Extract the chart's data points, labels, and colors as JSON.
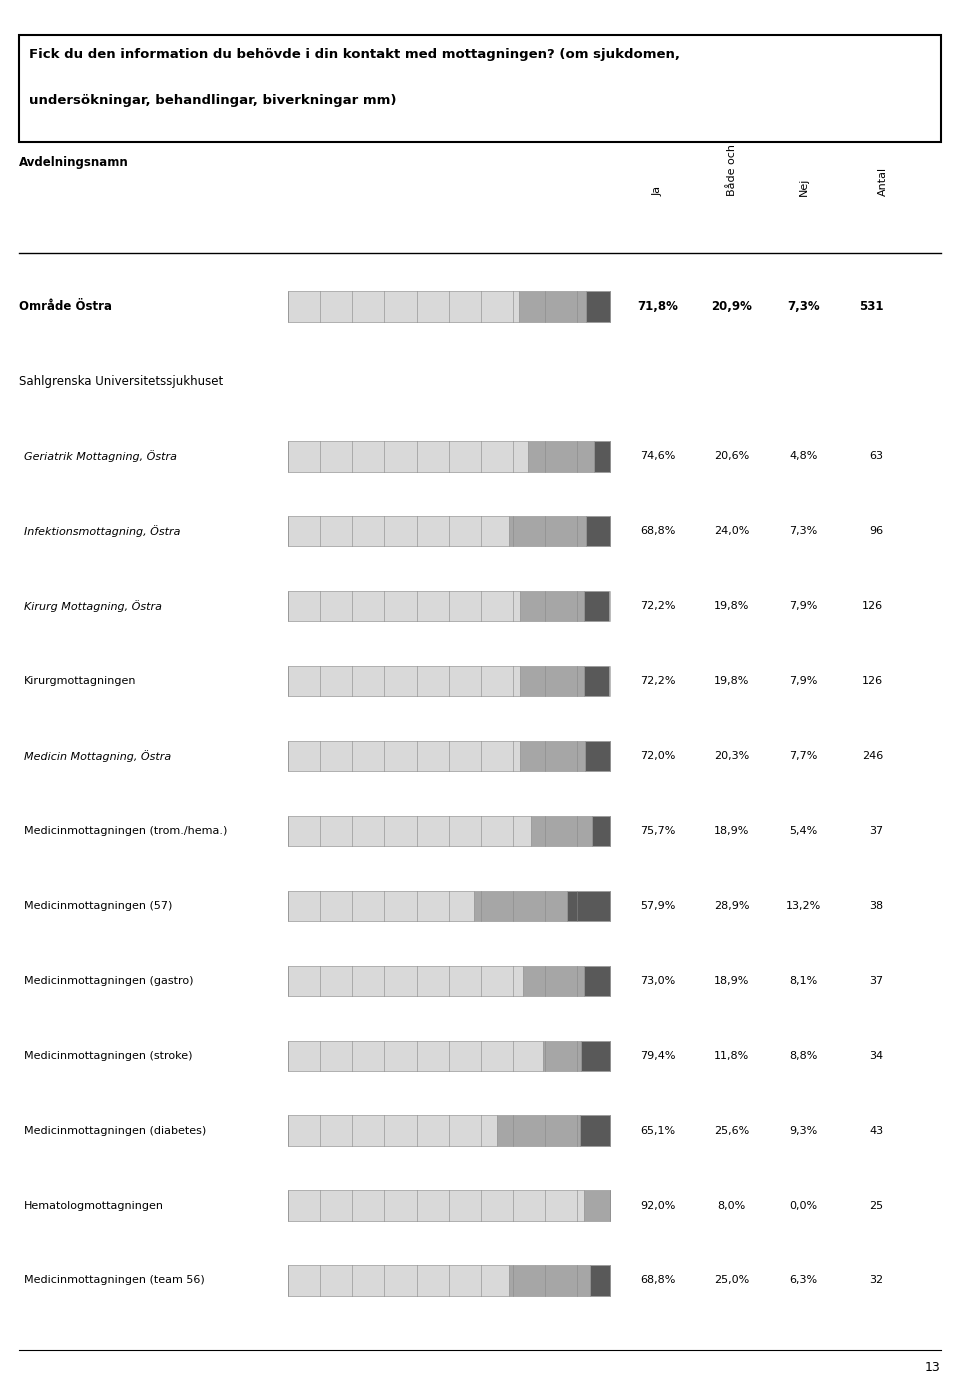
{
  "title_line1": "Fick du den information du behövde i din kontakt med mottagningen? (om sjukdomen,",
  "title_line2": "undersökningar, behandlingar, biverkningar mm)",
  "avdelningsnamn": "Avdelningsnamn",
  "col_headers": [
    "Ja",
    "Både och",
    "Nej",
    "Antal"
  ],
  "rows": [
    {
      "label": "Område Östra",
      "ja": 71.8,
      "bade": 20.9,
      "nej": 7.3,
      "antal": 531,
      "bold": true,
      "italic": false,
      "indent": 0,
      "is_header": false,
      "show_bar": true
    },
    {
      "label": "Sahlgrenska Universitetssjukhuset",
      "ja": null,
      "bade": null,
      "nej": null,
      "antal": null,
      "bold": false,
      "italic": false,
      "indent": 0,
      "is_header": true,
      "show_bar": false
    },
    {
      "label": "Geriatrik Mottagning, Östra",
      "ja": 74.6,
      "bade": 20.6,
      "nej": 4.8,
      "antal": 63,
      "bold": false,
      "italic": true,
      "indent": 1,
      "is_header": false,
      "show_bar": true
    },
    {
      "label": "Infektionsmottagning, Östra",
      "ja": 68.8,
      "bade": 24.0,
      "nej": 7.3,
      "antal": 96,
      "bold": false,
      "italic": true,
      "indent": 1,
      "is_header": false,
      "show_bar": true
    },
    {
      "label": "Kirurg Mottagning, Östra",
      "ja": 72.2,
      "bade": 19.8,
      "nej": 7.9,
      "antal": 126,
      "bold": false,
      "italic": true,
      "indent": 1,
      "is_header": false,
      "show_bar": true
    },
    {
      "label": "Kirurgmottagningen",
      "ja": 72.2,
      "bade": 19.8,
      "nej": 7.9,
      "antal": 126,
      "bold": false,
      "italic": false,
      "indent": 1,
      "is_header": false,
      "show_bar": true
    },
    {
      "label": "Medicin Mottagning, Östra",
      "ja": 72.0,
      "bade": 20.3,
      "nej": 7.7,
      "antal": 246,
      "bold": false,
      "italic": true,
      "indent": 1,
      "is_header": false,
      "show_bar": true
    },
    {
      "label": "Medicinmottagningen (trom./hema.)",
      "ja": 75.7,
      "bade": 18.9,
      "nej": 5.4,
      "antal": 37,
      "bold": false,
      "italic": false,
      "indent": 1,
      "is_header": false,
      "show_bar": true
    },
    {
      "label": "Medicinmottagningen (57)",
      "ja": 57.9,
      "bade": 28.9,
      "nej": 13.2,
      "antal": 38,
      "bold": false,
      "italic": false,
      "indent": 1,
      "is_header": false,
      "show_bar": true
    },
    {
      "label": "Medicinmottagningen (gastro)",
      "ja": 73.0,
      "bade": 18.9,
      "nej": 8.1,
      "antal": 37,
      "bold": false,
      "italic": false,
      "indent": 1,
      "is_header": false,
      "show_bar": true
    },
    {
      "label": "Medicinmottagningen (stroke)",
      "ja": 79.4,
      "bade": 11.8,
      "nej": 8.8,
      "antal": 34,
      "bold": false,
      "italic": false,
      "indent": 1,
      "is_header": false,
      "show_bar": true
    },
    {
      "label": "Medicinmottagningen (diabetes)",
      "ja": 65.1,
      "bade": 25.6,
      "nej": 9.3,
      "antal": 43,
      "bold": false,
      "italic": false,
      "indent": 1,
      "is_header": false,
      "show_bar": true
    },
    {
      "label": "Hematologmottagningen",
      "ja": 92.0,
      "bade": 8.0,
      "nej": 0.0,
      "antal": 25,
      "bold": false,
      "italic": false,
      "indent": 1,
      "is_header": false,
      "show_bar": true
    },
    {
      "label": "Medicinmottagningen (team 56)",
      "ja": 68.8,
      "bade": 25.0,
      "nej": 6.3,
      "antal": 32,
      "bold": false,
      "italic": false,
      "indent": 1,
      "is_header": false,
      "show_bar": true
    }
  ],
  "color_ja": "#d9d9d9",
  "color_bade": "#a6a6a6",
  "color_nej": "#595959",
  "bar_edge_color": "#999999",
  "page_number": "13"
}
